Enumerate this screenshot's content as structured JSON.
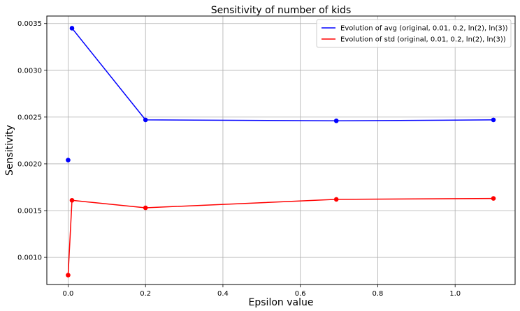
{
  "chart_data": {
    "type": "line",
    "title": "Sensitivity of number of kids",
    "xlabel": "Epsilon value",
    "ylabel": "Sensitivity",
    "xlim": [
      -0.055,
      1.155
    ],
    "ylim": [
      0.00071,
      0.00358
    ],
    "xticks": [
      0.0,
      0.2,
      0.4,
      0.6,
      0.8,
      1.0
    ],
    "xtick_labels": [
      "0.0",
      "0.2",
      "0.4",
      "0.6",
      "0.8",
      "1.0"
    ],
    "yticks": [
      0.001,
      0.0015,
      0.002,
      0.0025,
      0.003,
      0.0035
    ],
    "ytick_labels": [
      "0.0010",
      "0.0015",
      "0.0020",
      "0.0025",
      "0.0030",
      "0.0035"
    ],
    "grid": true,
    "legend_position": "top-right",
    "series": [
      {
        "name": "Evolution of avg (original, 0.01, 0.2, ln(2), ln(3))",
        "color": "#0000ff",
        "x": [
          0.0,
          0.01,
          0.2,
          0.693,
          1.099
        ],
        "y": [
          0.00204,
          0.00345,
          0.00247,
          0.00246,
          0.00247
        ],
        "line_starts_at_index": 1
      },
      {
        "name": "Evolution of std (original, 0.01, 0.2, ln(2), ln(3))",
        "color": "#ff0000",
        "x": [
          0.0,
          0.01,
          0.2,
          0.693,
          1.099
        ],
        "y": [
          0.00081,
          0.00161,
          0.00153,
          0.00162,
          0.00163
        ],
        "line_starts_at_index": 0
      }
    ]
  }
}
